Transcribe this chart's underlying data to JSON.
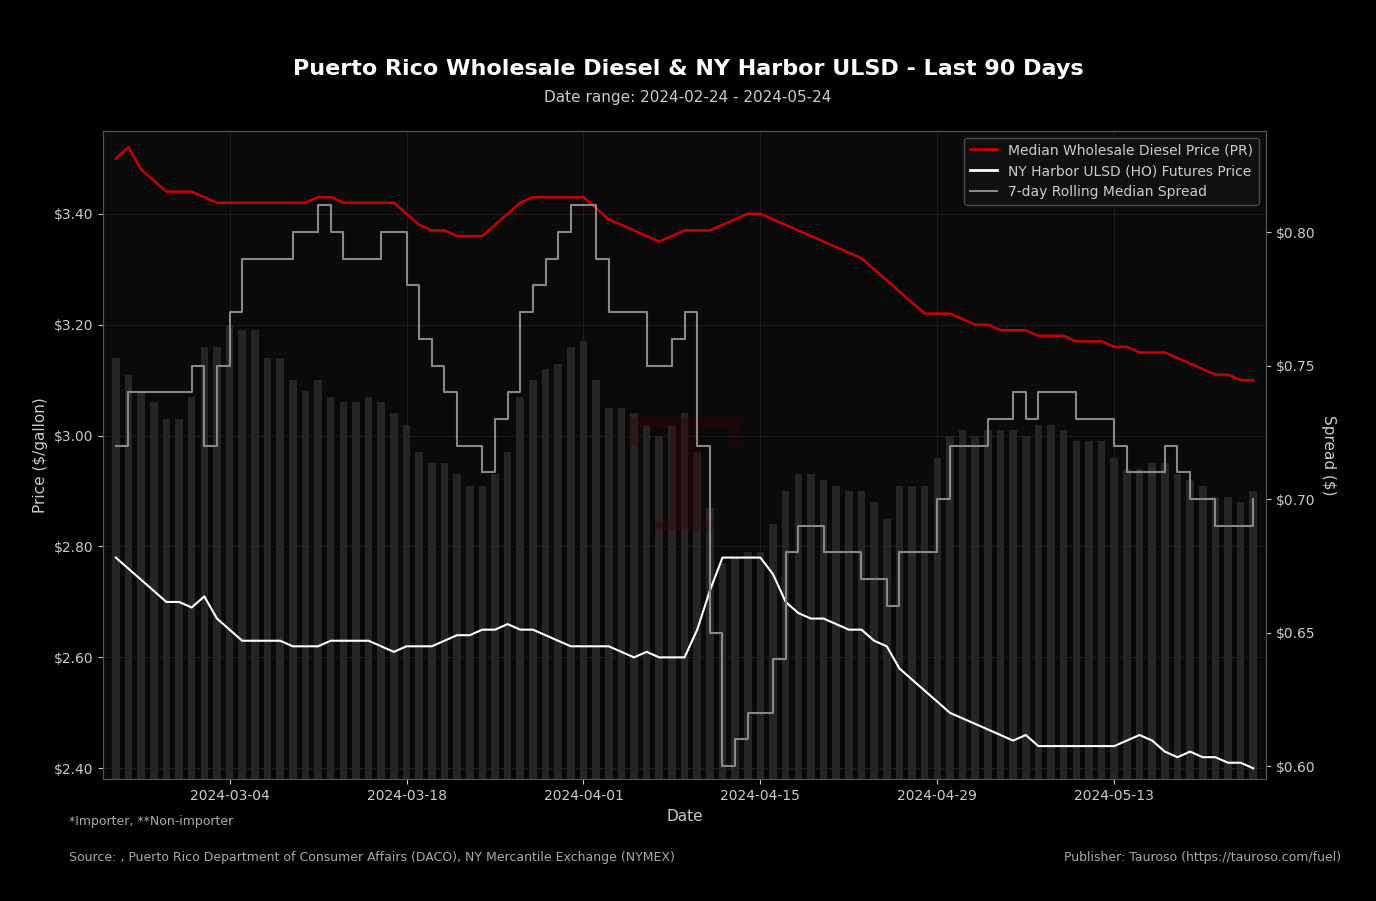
{
  "title": "Puerto Rico Wholesale Diesel & NY Harbor ULSD - Last 90 Days",
  "subtitle": "Date range: 2024-02-24 - 2024-05-24",
  "xlabel": "Date",
  "ylabel_left": "Price ($/gallon)",
  "ylabel_right": "Spread ($)",
  "background_color": "#000000",
  "plot_bg_color": "#0a0a0a",
  "grid_color": "#2a2a2a",
  "legend_labels": [
    "Median Wholesale Diesel Price (PR)",
    "NY Harbor ULSD (HO) Futures Price",
    "7-day Rolling Median Spread"
  ],
  "legend_colors": [
    "#cc0000",
    "#ffffff",
    "#888888"
  ],
  "footer_left1": "*Importer, **Non-importer",
  "footer_left2": "Source: , Puerto Rico Department of Consumer Affairs (DACO), NY Mercantile Exchange (NYMEX)",
  "footer_right": "Publisher: Tauroso (https://tauroso.com/fuel)",
  "ylim_left": [
    2.38,
    3.55
  ],
  "ylim_right": [
    0.595,
    0.838
  ],
  "dates": [
    "2024-02-24",
    "2024-02-25",
    "2024-02-26",
    "2024-02-27",
    "2024-02-28",
    "2024-02-29",
    "2024-03-01",
    "2024-03-02",
    "2024-03-03",
    "2024-03-04",
    "2024-03-05",
    "2024-03-06",
    "2024-03-07",
    "2024-03-08",
    "2024-03-09",
    "2024-03-10",
    "2024-03-11",
    "2024-03-12",
    "2024-03-13",
    "2024-03-14",
    "2024-03-15",
    "2024-03-16",
    "2024-03-17",
    "2024-03-18",
    "2024-03-19",
    "2024-03-20",
    "2024-03-21",
    "2024-03-22",
    "2024-03-23",
    "2024-03-24",
    "2024-03-25",
    "2024-03-26",
    "2024-03-27",
    "2024-03-28",
    "2024-03-29",
    "2024-03-30",
    "2024-03-31",
    "2024-04-01",
    "2024-04-02",
    "2024-04-03",
    "2024-04-04",
    "2024-04-05",
    "2024-04-06",
    "2024-04-07",
    "2024-04-08",
    "2024-04-09",
    "2024-04-10",
    "2024-04-11",
    "2024-04-12",
    "2024-04-13",
    "2024-04-14",
    "2024-04-15",
    "2024-04-16",
    "2024-04-17",
    "2024-04-18",
    "2024-04-19",
    "2024-04-20",
    "2024-04-21",
    "2024-04-22",
    "2024-04-23",
    "2024-04-24",
    "2024-04-25",
    "2024-04-26",
    "2024-04-27",
    "2024-04-28",
    "2024-04-29",
    "2024-04-30",
    "2024-05-01",
    "2024-05-02",
    "2024-05-03",
    "2024-05-04",
    "2024-05-05",
    "2024-05-06",
    "2024-05-07",
    "2024-05-08",
    "2024-05-09",
    "2024-05-10",
    "2024-05-11",
    "2024-05-12",
    "2024-05-13",
    "2024-05-14",
    "2024-05-15",
    "2024-05-16",
    "2024-05-17",
    "2024-05-18",
    "2024-05-19",
    "2024-05-20",
    "2024-05-21",
    "2024-05-22",
    "2024-05-23",
    "2024-05-24"
  ],
  "wholesale_diesel": [
    3.5,
    3.52,
    3.48,
    3.46,
    3.44,
    3.44,
    3.44,
    3.43,
    3.42,
    3.42,
    3.42,
    3.42,
    3.42,
    3.42,
    3.42,
    3.42,
    3.43,
    3.43,
    3.42,
    3.42,
    3.42,
    3.42,
    3.42,
    3.4,
    3.38,
    3.37,
    3.37,
    3.36,
    3.36,
    3.36,
    3.38,
    3.4,
    3.42,
    3.43,
    3.43,
    3.43,
    3.43,
    3.43,
    3.41,
    3.39,
    3.38,
    3.37,
    3.36,
    3.35,
    3.36,
    3.37,
    3.37,
    3.37,
    3.38,
    3.39,
    3.4,
    3.4,
    3.39,
    3.38,
    3.37,
    3.36,
    3.35,
    3.34,
    3.33,
    3.32,
    3.3,
    3.28,
    3.26,
    3.24,
    3.22,
    3.22,
    3.22,
    3.21,
    3.2,
    3.2,
    3.19,
    3.19,
    3.19,
    3.18,
    3.18,
    3.18,
    3.17,
    3.17,
    3.17,
    3.16,
    3.16,
    3.15,
    3.15,
    3.15,
    3.14,
    3.13,
    3.12,
    3.11,
    3.11,
    3.1,
    3.1
  ],
  "ny_harbor_futures": [
    2.78,
    2.76,
    2.74,
    2.72,
    2.7,
    2.7,
    2.69,
    2.71,
    2.67,
    2.65,
    2.63,
    2.63,
    2.63,
    2.63,
    2.62,
    2.62,
    2.62,
    2.63,
    2.63,
    2.63,
    2.63,
    2.62,
    2.61,
    2.62,
    2.62,
    2.62,
    2.63,
    2.64,
    2.64,
    2.65,
    2.65,
    2.66,
    2.65,
    2.65,
    2.64,
    2.63,
    2.62,
    2.62,
    2.62,
    2.62,
    2.61,
    2.6,
    2.61,
    2.6,
    2.6,
    2.6,
    2.65,
    2.72,
    2.78,
    2.78,
    2.78,
    2.78,
    2.75,
    2.7,
    2.68,
    2.67,
    2.67,
    2.66,
    2.65,
    2.65,
    2.63,
    2.62,
    2.58,
    2.56,
    2.54,
    2.52,
    2.5,
    2.49,
    2.48,
    2.47,
    2.46,
    2.45,
    2.46,
    2.44,
    2.44,
    2.44,
    2.44,
    2.44,
    2.44,
    2.44,
    2.45,
    2.46,
    2.45,
    2.43,
    2.42,
    2.43,
    2.42,
    2.42,
    2.41,
    2.41,
    2.4
  ],
  "spread_7day": [
    0.72,
    0.74,
    0.74,
    0.74,
    0.74,
    0.74,
    0.75,
    0.72,
    0.75,
    0.77,
    0.79,
    0.79,
    0.79,
    0.79,
    0.8,
    0.8,
    0.81,
    0.8,
    0.79,
    0.79,
    0.79,
    0.8,
    0.8,
    0.78,
    0.76,
    0.75,
    0.74,
    0.72,
    0.72,
    0.71,
    0.73,
    0.74,
    0.77,
    0.78,
    0.79,
    0.8,
    0.81,
    0.81,
    0.79,
    0.77,
    0.77,
    0.77,
    0.75,
    0.75,
    0.76,
    0.77,
    0.72,
    0.65,
    0.6,
    0.61,
    0.62,
    0.62,
    0.64,
    0.68,
    0.69,
    0.69,
    0.68,
    0.68,
    0.68,
    0.67,
    0.67,
    0.66,
    0.68,
    0.68,
    0.68,
    0.7,
    0.72,
    0.72,
    0.72,
    0.73,
    0.73,
    0.74,
    0.73,
    0.74,
    0.74,
    0.74,
    0.73,
    0.73,
    0.73,
    0.72,
    0.71,
    0.71,
    0.71,
    0.72,
    0.71,
    0.7,
    0.7,
    0.69,
    0.69,
    0.69,
    0.7
  ],
  "bar_heights_price": [
    3.14,
    3.11,
    3.08,
    3.06,
    3.03,
    3.03,
    3.07,
    3.16,
    3.16,
    3.2,
    3.19,
    3.19,
    3.14,
    3.14,
    3.1,
    3.08,
    3.1,
    3.07,
    3.06,
    3.06,
    3.07,
    3.06,
    3.04,
    3.02,
    2.97,
    2.95,
    2.95,
    2.93,
    2.91,
    2.91,
    2.93,
    2.97,
    3.07,
    3.1,
    3.12,
    3.13,
    3.16,
    3.17,
    3.1,
    3.05,
    3.05,
    3.04,
    3.02,
    3.0,
    3.02,
    3.04,
    2.97,
    2.87,
    2.77,
    2.78,
    2.79,
    2.79,
    2.84,
    2.9,
    2.93,
    2.93,
    2.92,
    2.91,
    2.9,
    2.9,
    2.88,
    2.85,
    2.91,
    2.91,
    2.91,
    2.96,
    3.0,
    3.01,
    3.0,
    3.01,
    3.01,
    3.01,
    3.0,
    3.02,
    3.02,
    3.01,
    2.99,
    2.99,
    2.99,
    2.96,
    2.94,
    2.94,
    2.95,
    2.95,
    2.93,
    2.92,
    2.91,
    2.89,
    2.89,
    2.88,
    2.9
  ],
  "tick_label_color": "#cccccc",
  "title_color": "#ffffff",
  "title_fontsize": 16,
  "subtitle_fontsize": 11,
  "axis_label_fontsize": 11,
  "tick_fontsize": 10,
  "legend_fontsize": 10,
  "footer_fontsize": 9
}
